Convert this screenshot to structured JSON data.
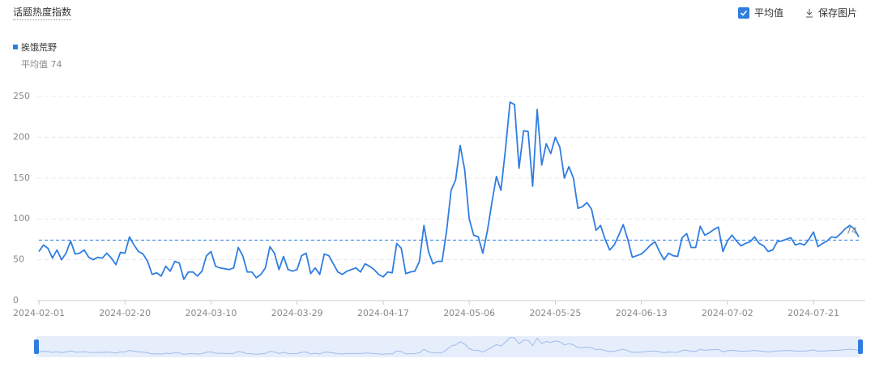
{
  "header": {
    "title": "话题热度指数",
    "average_toggle": "平均值",
    "save": "保存图片"
  },
  "chart_data": {
    "type": "line",
    "average_label": "平均值",
    "average": 74,
    "x": [
      "2024-02-01",
      "2024-02-02",
      "2024-02-03",
      "2024-02-04",
      "2024-02-05",
      "2024-02-06",
      "2024-02-07",
      "2024-02-08",
      "2024-02-09",
      "2024-02-10",
      "2024-02-11",
      "2024-02-12",
      "2024-02-13",
      "2024-02-14",
      "2024-02-15",
      "2024-02-16",
      "2024-02-17",
      "2024-02-18",
      "2024-02-19",
      "2024-02-20",
      "2024-02-21",
      "2024-02-22",
      "2024-02-23",
      "2024-02-24",
      "2024-02-25",
      "2024-02-26",
      "2024-02-27",
      "2024-02-28",
      "2024-02-29",
      "2024-03-01",
      "2024-03-02",
      "2024-03-03",
      "2024-03-04",
      "2024-03-05",
      "2024-03-06",
      "2024-03-07",
      "2024-03-08",
      "2024-03-09",
      "2024-03-10",
      "2024-03-11",
      "2024-03-12",
      "2024-03-13",
      "2024-03-14",
      "2024-03-15",
      "2024-03-16",
      "2024-03-17",
      "2024-03-18",
      "2024-03-19",
      "2024-03-20",
      "2024-03-21",
      "2024-03-22",
      "2024-03-23",
      "2024-03-24",
      "2024-03-25",
      "2024-03-26",
      "2024-03-27",
      "2024-03-28",
      "2024-03-29",
      "2024-03-30",
      "2024-03-31",
      "2024-04-01",
      "2024-04-02",
      "2024-04-03",
      "2024-04-04",
      "2024-04-05",
      "2024-04-06",
      "2024-04-07",
      "2024-04-08",
      "2024-04-09",
      "2024-04-10",
      "2024-04-11",
      "2024-04-12",
      "2024-04-13",
      "2024-04-14",
      "2024-04-15",
      "2024-04-16",
      "2024-04-17",
      "2024-04-18",
      "2024-04-19",
      "2024-04-20",
      "2024-04-21",
      "2024-04-22",
      "2024-04-23",
      "2024-04-24",
      "2024-04-25",
      "2024-04-26",
      "2024-04-27",
      "2024-04-28",
      "2024-04-29",
      "2024-04-30",
      "2024-05-01",
      "2024-05-02",
      "2024-05-03",
      "2024-05-04",
      "2024-05-05",
      "2024-05-06",
      "2024-05-07",
      "2024-05-08",
      "2024-05-09",
      "2024-05-10",
      "2024-05-11",
      "2024-05-12",
      "2024-05-13",
      "2024-05-14",
      "2024-05-15",
      "2024-05-16",
      "2024-05-17",
      "2024-05-18",
      "2024-05-19",
      "2024-05-20",
      "2024-05-21",
      "2024-05-22",
      "2024-05-23",
      "2024-05-24",
      "2024-05-25",
      "2024-05-26",
      "2024-05-27",
      "2024-05-28",
      "2024-05-29",
      "2024-05-30",
      "2024-05-31",
      "2024-06-01",
      "2024-06-02",
      "2024-06-03",
      "2024-06-04",
      "2024-06-05",
      "2024-06-06",
      "2024-06-07",
      "2024-06-08",
      "2024-06-09",
      "2024-06-10",
      "2024-06-11",
      "2024-06-12",
      "2024-06-13",
      "2024-06-14",
      "2024-06-15",
      "2024-06-16",
      "2024-06-17",
      "2024-06-18",
      "2024-06-19",
      "2024-06-20",
      "2024-06-21",
      "2024-06-22",
      "2024-06-23",
      "2024-06-24",
      "2024-06-25",
      "2024-06-26",
      "2024-06-27",
      "2024-06-28",
      "2024-06-29",
      "2024-06-30",
      "2024-07-01",
      "2024-07-02",
      "2024-07-03",
      "2024-07-04",
      "2024-07-05",
      "2024-07-06",
      "2024-07-07",
      "2024-07-08",
      "2024-07-09",
      "2024-07-10",
      "2024-07-11",
      "2024-07-12",
      "2024-07-13",
      "2024-07-14",
      "2024-07-15",
      "2024-07-16",
      "2024-07-17",
      "2024-07-18",
      "2024-07-19",
      "2024-07-20",
      "2024-07-21",
      "2024-07-22",
      "2024-07-23",
      "2024-07-24",
      "2024-07-25",
      "2024-07-26",
      "2024-07-27",
      "2024-07-28",
      "2024-07-29",
      "2024-07-30",
      "2024-07-31"
    ],
    "xticks": [
      "2024-02-01",
      "2024-02-20",
      "2024-03-10",
      "2024-03-29",
      "2024-04-17",
      "2024-05-06",
      "2024-05-25",
      "2024-06-13",
      "2024-07-02",
      "2024-07-21"
    ],
    "series": [
      {
        "name": "挨饿荒野",
        "color": "#2f7de1",
        "values": [
          60,
          68,
          64,
          52,
          62,
          50,
          58,
          73,
          57,
          58,
          62,
          53,
          50,
          53,
          52,
          58,
          52,
          44,
          59,
          58,
          78,
          68,
          60,
          57,
          48,
          32,
          34,
          30,
          42,
          36,
          48,
          46,
          26,
          35,
          35,
          30,
          36,
          55,
          60,
          42,
          40,
          39,
          38,
          40,
          65,
          55,
          35,
          35,
          28,
          32,
          40,
          66,
          58,
          38,
          54,
          38,
          36,
          38,
          55,
          58,
          33,
          40,
          32,
          57,
          55,
          45,
          35,
          32,
          36,
          38,
          40,
          35,
          45,
          42,
          38,
          32,
          29,
          35,
          34,
          70,
          64,
          33,
          35,
          36,
          48,
          92,
          60,
          45,
          48,
          48,
          85,
          135,
          148,
          190,
          160,
          100,
          80,
          78,
          58,
          85,
          120,
          152,
          135,
          185,
          243,
          240,
          162,
          208,
          207,
          140,
          234,
          166,
          192,
          180,
          200,
          188,
          150,
          164,
          150,
          113,
          115,
          120,
          112,
          86,
          92,
          75,
          62,
          68,
          80,
          93,
          75,
          53,
          55,
          57,
          62,
          68,
          72,
          60,
          50,
          58,
          55,
          54,
          77,
          82,
          65,
          65,
          91,
          80,
          83,
          87,
          90,
          60,
          73,
          80,
          73,
          67,
          70,
          72,
          78,
          70,
          67,
          60,
          62,
          72,
          73,
          75,
          77,
          68,
          70,
          68,
          75,
          84,
          66,
          70,
          73,
          78,
          77,
          82,
          88,
          92,
          88,
          78
        ]
      }
    ],
    "ylim": [
      0,
      250
    ],
    "yticks": [
      0,
      50,
      100,
      150,
      200,
      250
    ],
    "grid": true
  }
}
